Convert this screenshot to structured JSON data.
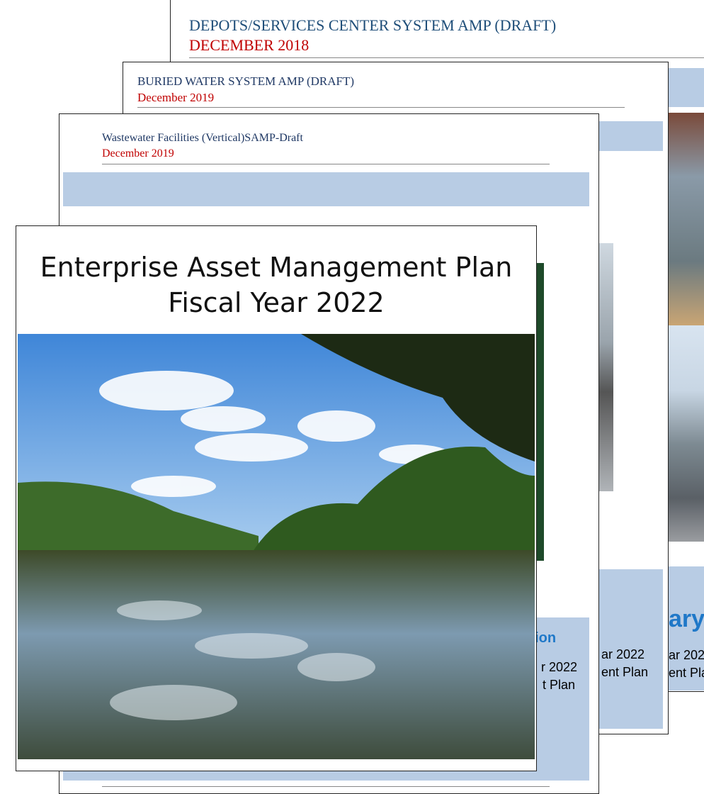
{
  "documents": [
    {
      "title": "DEPOTS/SERVICES CENTER SYSTEM AMP (DRAFT)",
      "date": "DECEMBER 2018",
      "fragments": [
        "ary",
        "ar 2022",
        "ent Plan"
      ]
    },
    {
      "title": "BURIED WATER SYSTEM AMP (DRAFT)",
      "date": "December 2019",
      "fragments": [
        "ar 2022",
        "ent Plan"
      ]
    },
    {
      "title": "Wastewater Facilities (Vertical)SAMP-Draft",
      "date": "December 2019",
      "fragments": [
        "sion",
        "r 2022",
        "t Plan"
      ]
    },
    {
      "title": "Enterprise Asset Management Plan",
      "subtitle": "Fiscal Year 2022"
    }
  ]
}
